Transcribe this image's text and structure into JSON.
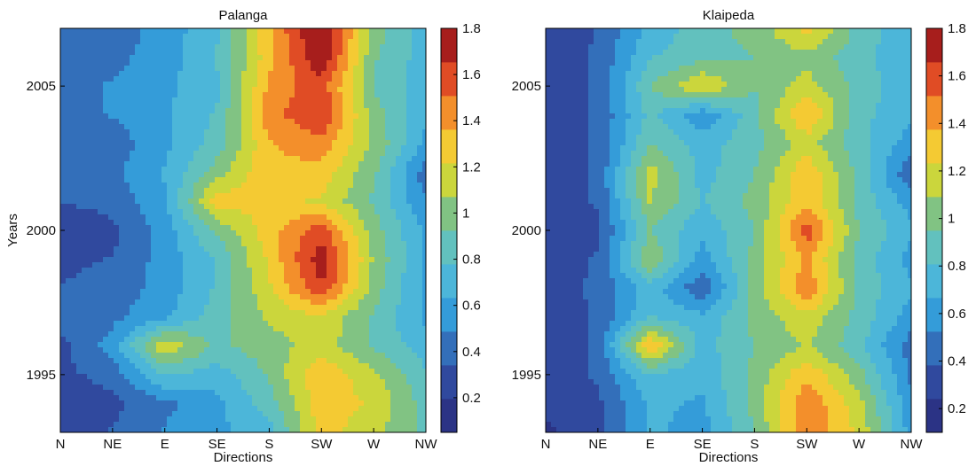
{
  "chart_data": [
    {
      "type": "heatmap",
      "variant": "filled-contour",
      "title": "Palanga",
      "xlabel": "Directions",
      "ylabel": "Years",
      "x_categories": [
        "N",
        "NE",
        "E",
        "SE",
        "S",
        "SW",
        "W",
        "NW"
      ],
      "y_ticks": [
        1995,
        2000,
        2005
      ],
      "ylim": [
        1993,
        2007
      ],
      "colorbar": {
        "range": [
          0.05,
          1.8
        ],
        "ticks": [
          "0.2",
          "0.4",
          "0.6",
          "0.8",
          "1",
          "1.2",
          "1.4",
          "1.6",
          "1.8"
        ]
      },
      "years": [
        1993,
        1994,
        1995,
        1996,
        1997,
        1998,
        1999,
        2000,
        2001,
        2002,
        2003,
        2004,
        2005,
        2006,
        2007
      ],
      "z": [
        [
          0.3,
          0.35,
          0.5,
          0.6,
          0.7,
          1.3,
          1.1,
          0.9
        ],
        [
          0.25,
          0.3,
          0.45,
          0.6,
          0.85,
          1.3,
          1.2,
          0.85
        ],
        [
          0.3,
          0.4,
          0.8,
          0.7,
          0.95,
          1.35,
          1.1,
          0.8
        ],
        [
          0.3,
          0.55,
          1.2,
          0.9,
          1.0,
          1.15,
          0.9,
          0.7
        ],
        [
          0.4,
          0.45,
          0.6,
          0.85,
          1.1,
          1.2,
          0.9,
          0.6
        ],
        [
          0.35,
          0.4,
          0.55,
          0.8,
          1.2,
          1.65,
          1.0,
          0.6
        ],
        [
          0.3,
          0.35,
          0.55,
          0.8,
          1.25,
          1.75,
          1.05,
          0.6
        ],
        [
          0.2,
          0.3,
          0.55,
          0.95,
          1.3,
          1.6,
          1.0,
          0.6
        ],
        [
          0.35,
          0.4,
          0.6,
          1.3,
          1.25,
          1.2,
          0.9,
          0.5
        ],
        [
          0.4,
          0.45,
          0.65,
          1.0,
          1.35,
          1.3,
          0.95,
          0.4
        ],
        [
          0.35,
          0.4,
          0.6,
          0.85,
          1.35,
          1.45,
          1.05,
          0.6
        ],
        [
          0.4,
          0.5,
          0.6,
          0.8,
          1.45,
          1.65,
          1.0,
          0.65
        ],
        [
          0.45,
          0.5,
          0.6,
          0.75,
          1.4,
          1.6,
          0.9,
          0.7
        ],
        [
          0.4,
          0.45,
          0.55,
          0.8,
          1.3,
          1.8,
          0.95,
          0.7
        ],
        [
          0.35,
          0.4,
          0.55,
          0.75,
          1.35,
          1.85,
          1.0,
          0.7
        ]
      ]
    },
    {
      "type": "heatmap",
      "variant": "filled-contour",
      "title": "Klaipeda",
      "xlabel": "Directions",
      "ylabel": "",
      "x_categories": [
        "N",
        "NE",
        "E",
        "SE",
        "S",
        "SW",
        "W",
        "NW"
      ],
      "y_ticks": [
        1995,
        2000,
        2005
      ],
      "ylim": [
        1993,
        2007
      ],
      "colorbar": {
        "range": [
          0.1,
          1.8
        ],
        "ticks": [
          "0.2",
          "0.4",
          "0.6",
          "0.8",
          "1",
          "1.2",
          "1.4",
          "1.6",
          "1.8"
        ]
      },
      "years": [
        1993,
        1994,
        1995,
        1996,
        1997,
        1998,
        1999,
        2000,
        2001,
        2002,
        2003,
        2004,
        2005,
        2006,
        2007
      ],
      "z": [
        [
          0.2,
          0.35,
          0.7,
          0.6,
          0.95,
          1.5,
          1.2,
          0.6
        ],
        [
          0.3,
          0.35,
          0.7,
          0.65,
          1.0,
          1.5,
          1.15,
          0.55
        ],
        [
          0.3,
          0.4,
          0.8,
          0.7,
          1.0,
          1.35,
          1.0,
          0.5
        ],
        [
          0.3,
          0.4,
          1.4,
          0.75,
          0.95,
          1.1,
          0.85,
          0.45
        ],
        [
          0.3,
          0.4,
          0.8,
          0.7,
          1.0,
          1.2,
          0.9,
          0.6
        ],
        [
          0.35,
          0.4,
          0.75,
          0.4,
          1.0,
          1.5,
          0.9,
          0.7
        ],
        [
          0.3,
          0.4,
          1.1,
          0.6,
          1.0,
          1.4,
          0.9,
          0.6
        ],
        [
          0.25,
          0.35,
          0.95,
          0.7,
          0.95,
          1.6,
          0.95,
          0.7
        ],
        [
          0.3,
          0.4,
          1.1,
          0.8,
          1.0,
          1.35,
          0.9,
          0.6
        ],
        [
          0.3,
          0.4,
          1.15,
          0.75,
          0.95,
          1.35,
          0.9,
          0.4
        ],
        [
          0.3,
          0.4,
          0.95,
          0.75,
          0.9,
          1.15,
          0.85,
          0.6
        ],
        [
          0.3,
          0.4,
          0.85,
          0.55,
          0.9,
          1.4,
          0.85,
          0.7
        ],
        [
          0.3,
          0.4,
          0.95,
          1.25,
          0.95,
          1.15,
          0.9,
          0.7
        ],
        [
          0.3,
          0.4,
          0.8,
          0.9,
          0.95,
          1.05,
          0.85,
          0.7
        ],
        [
          0.25,
          0.4,
          0.7,
          0.9,
          1.0,
          1.3,
          0.9,
          0.7
        ]
      ]
    }
  ]
}
